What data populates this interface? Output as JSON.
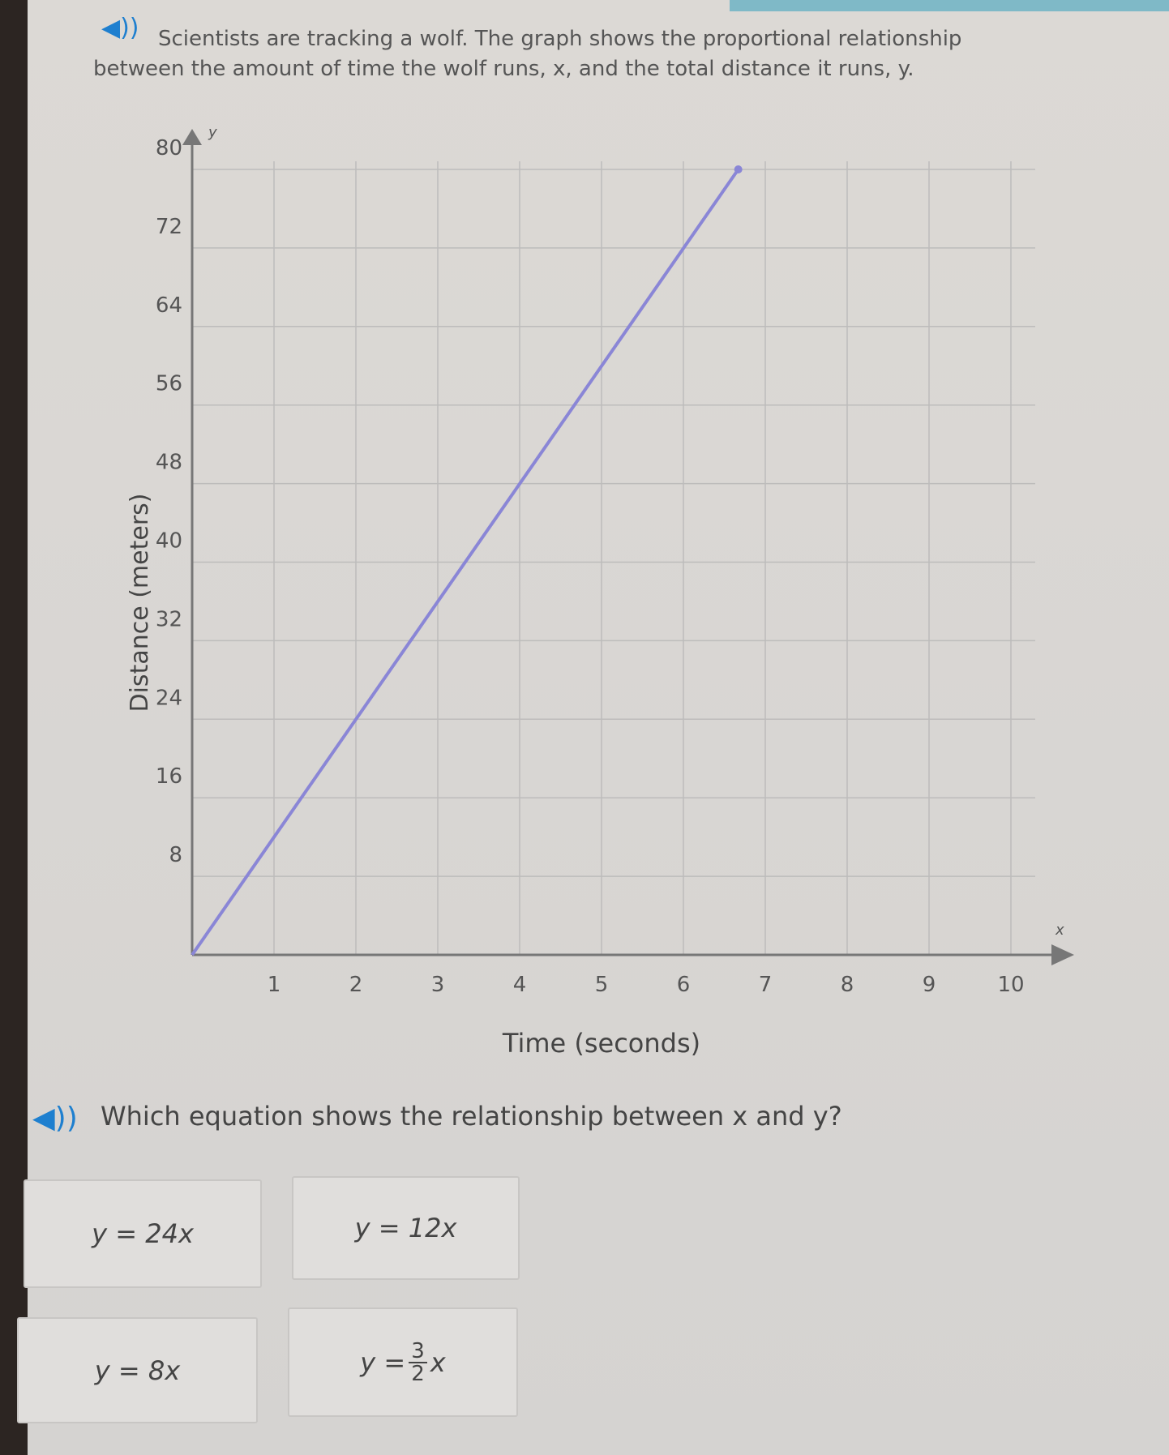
{
  "prompt": {
    "line1": "Scientists are tracking a wolf. The graph shows the proportional relationship",
    "line2": "between the amount of time the wolf runs, x, and the total distance it runs, y."
  },
  "question": "Which equation shows the relationship between x and y?",
  "choices": [
    {
      "text": "y = 24x"
    },
    {
      "text": "y = 12x"
    },
    {
      "text": "y = 8x"
    },
    {
      "prefix": "y =",
      "numerator": "3",
      "denominator": "2",
      "suffix": "x"
    }
  ],
  "colors": {
    "line": "#8a86d6",
    "speaker": "#1e7fcf",
    "grid": "#bdbcbb"
  },
  "chart_data": {
    "type": "line",
    "xlabel": "Time (seconds)",
    "ylabel": "Distance (meters)",
    "x_axis_name": "x",
    "y_axis_name": "y",
    "xlim": [
      0,
      10
    ],
    "ylim": [
      0,
      80
    ],
    "xticks": [
      "1",
      "2",
      "3",
      "4",
      "5",
      "6",
      "7",
      "8",
      "9",
      "10"
    ],
    "yticks": [
      "8",
      "16",
      "24",
      "32",
      "40",
      "48",
      "56",
      "64",
      "72",
      "80"
    ],
    "grid": true,
    "series": [
      {
        "x": [
          0,
          6.67
        ],
        "y": [
          0,
          80
        ]
      }
    ]
  }
}
